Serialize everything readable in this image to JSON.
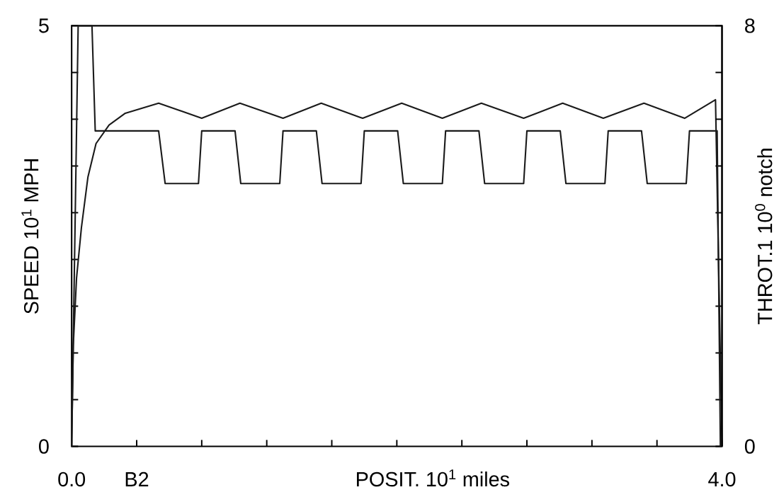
{
  "chart_data": {
    "type": "line",
    "xlabel": "POSIT.   10$^{1}$ miles",
    "ylabel": "SPEED   10$^{1}$   MPH",
    "y2label": "THROT.1   10$^{0}$   notch",
    "xlim": [
      0,
      4
    ],
    "xticks": [
      {
        "value": 0,
        "label": "0.0"
      },
      {
        "value": 0.4,
        "label": "B2"
      },
      {
        "value": 0.8,
        "label": null
      },
      {
        "value": 1.2,
        "label": null
      },
      {
        "value": 1.6,
        "label": null
      },
      {
        "value": 2.0,
        "label": null
      },
      {
        "value": 2.4,
        "label": null
      },
      {
        "value": 2.8,
        "label": null
      },
      {
        "value": 3.2,
        "label": null
      },
      {
        "value": 3.6,
        "label": null
      },
      {
        "value": 4,
        "label": "4.0"
      }
    ],
    "ylim": [
      0,
      5
    ],
    "yticks": [
      0,
      {
        "value": 0.556,
        "label": null
      },
      {
        "value": 1.111,
        "label": null
      },
      {
        "value": 1.667,
        "label": null
      },
      {
        "value": 2.222,
        "label": null
      },
      {
        "value": 2.778,
        "label": null
      },
      {
        "value": 3.333,
        "label": null
      },
      {
        "value": 3.889,
        "label": null
      },
      {
        "value": 4.444,
        "label": null
      },
      5
    ],
    "y2lim": [
      0,
      8
    ],
    "y2ticks": [
      0,
      {
        "value": 0.889,
        "label": null
      },
      {
        "value": 1.778,
        "label": null
      },
      {
        "value": 2.667,
        "label": null
      },
      {
        "value": 3.556,
        "label": null
      },
      {
        "value": 4.444,
        "label": null
      },
      {
        "value": 5.333,
        "label": null
      },
      {
        "value": 6.222,
        "label": null
      },
      {
        "value": 7.111,
        "label": null
      },
      8
    ],
    "marker": "none",
    "line_style": "solid",
    "series": [
      {
        "color": "#1a1a1a",
        "axis": "y",
        "x": [
          0,
          0.01,
          0.03,
          0.06,
          0.1,
          0.15,
          0.23,
          0.33,
          0.535,
          0.8,
          1.035,
          1.3,
          1.535,
          1.79,
          2.03,
          2.28,
          2.52,
          2.78,
          3.02,
          3.27,
          3.52,
          3.77,
          3.96,
          4.0
        ],
        "values": [
          0,
          1.2,
          2.0,
          2.6,
          3.2,
          3.6,
          3.82,
          3.96,
          4.08,
          3.9,
          4.08,
          3.9,
          4.08,
          3.9,
          4.08,
          3.9,
          4.08,
          3.9,
          4.08,
          3.9,
          4.08,
          3.9,
          4.12,
          0
        ]
      },
      {
        "color": "#1a1a1a",
        "axis": "y2",
        "x": [
          0,
          0.04,
          0.125,
          0.145,
          0.535,
          0.575,
          0.78,
          0.8,
          1.005,
          1.04,
          1.28,
          1.3,
          1.505,
          1.54,
          1.78,
          1.8,
          2.005,
          2.04,
          2.28,
          2.3,
          2.505,
          2.54,
          2.78,
          2.8,
          3.005,
          3.04,
          3.28,
          3.3,
          3.505,
          3.54,
          3.78,
          3.8,
          3.97,
          3.99
        ],
        "values": [
          0,
          8,
          8,
          6,
          6,
          5,
          5,
          6,
          6,
          5,
          5,
          6,
          6,
          5,
          5,
          6,
          6,
          5,
          5,
          6,
          6,
          5,
          5,
          6,
          6,
          5,
          5,
          6,
          6,
          5,
          5,
          6,
          6,
          0
        ]
      }
    ]
  }
}
